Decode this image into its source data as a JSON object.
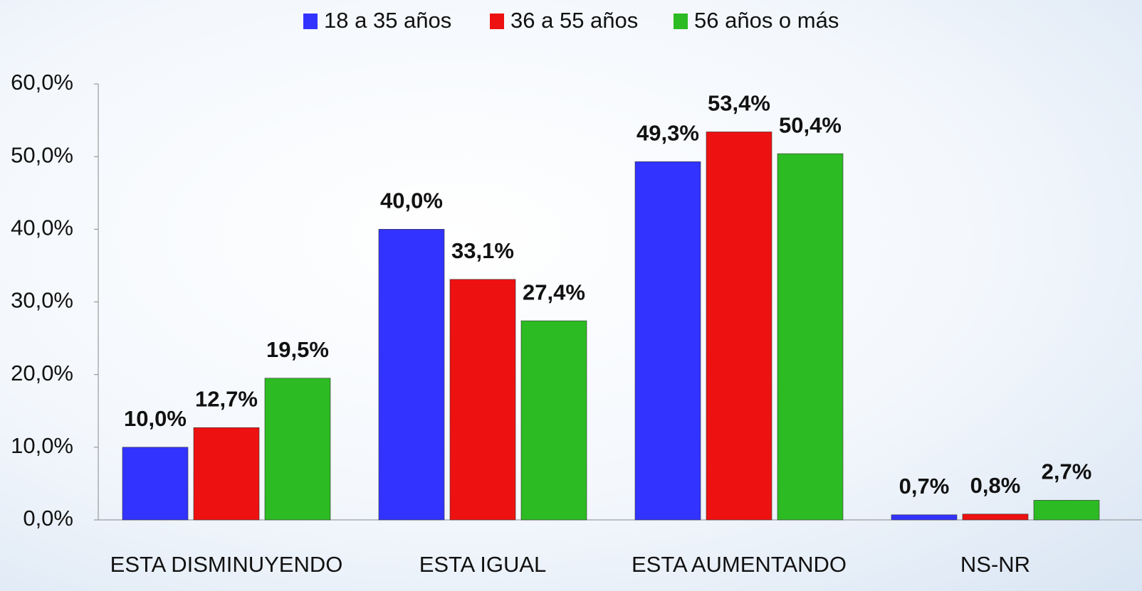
{
  "chart_data": {
    "type": "bar",
    "categories": [
      "ESTA DISMINUYENDO",
      "ESTA IGUAL",
      "ESTA AUMENTANDO",
      "NS-NR"
    ],
    "series": [
      {
        "name": "18 a 35 años",
        "color": "#3333ff",
        "values": [
          10.0,
          40.0,
          49.3,
          0.7
        ],
        "value_labels": [
          "10,0%",
          "40,0%",
          "49,3%",
          "0,7%"
        ]
      },
      {
        "name": "36 a 55 años",
        "color": "#ee1111",
        "values": [
          12.7,
          33.1,
          53.4,
          0.8
        ],
        "value_labels": [
          "12,7%",
          "33,1%",
          "53,4%",
          "0,8%"
        ]
      },
      {
        "name": "56 años o más",
        "color": "#2cbb22",
        "values": [
          19.5,
          27.4,
          50.4,
          2.7
        ],
        "value_labels": [
          "19,5%",
          "27,4%",
          "50,4%",
          "2,7%"
        ]
      }
    ],
    "ylim": [
      0,
      60
    ],
    "yticks": [
      {
        "value": 0,
        "label": "0,0%"
      },
      {
        "value": 10,
        "label": "10,0%"
      },
      {
        "value": 20,
        "label": "20,0%"
      },
      {
        "value": 30,
        "label": "30,0%"
      },
      {
        "value": 40,
        "label": "40,0%"
      },
      {
        "value": 50,
        "label": "50,0%"
      },
      {
        "value": 60,
        "label": "60,0%"
      }
    ],
    "legend": "top"
  }
}
